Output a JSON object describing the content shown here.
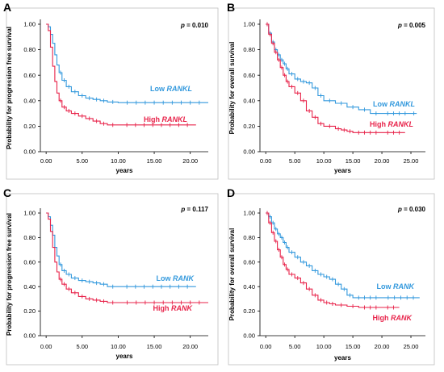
{
  "chart_data": [
    {
      "panel_label": "A",
      "type": "line",
      "xlabel": "years",
      "ylabel": "Probability for progression free survival",
      "x_ticks": [
        "0.00",
        "5.00",
        "10.00",
        "15.00",
        "20.00"
      ],
      "y_ticks": [
        "0.00",
        "0.20",
        "0.40",
        "0.60",
        "0.80",
        "1.00"
      ],
      "xlim": [
        -0.8,
        22.5
      ],
      "ylim": [
        0,
        1.0
      ],
      "p_value": "0.010",
      "series": [
        {
          "name_parts": [
            "Low ",
            "RANKL"
          ],
          "color": "#3399dd",
          "points": [
            [
              0,
              1.0
            ],
            [
              0.3,
              0.98
            ],
            [
              0.6,
              0.92
            ],
            [
              0.9,
              0.85
            ],
            [
              1.2,
              0.76
            ],
            [
              1.5,
              0.68
            ],
            [
              1.8,
              0.62
            ],
            [
              2.2,
              0.56
            ],
            [
              2.8,
              0.51
            ],
            [
              3.5,
              0.47
            ],
            [
              4.5,
              0.44
            ],
            [
              5.5,
              0.42
            ],
            [
              6.5,
              0.41
            ],
            [
              7.5,
              0.4
            ],
            [
              8.5,
              0.39
            ],
            [
              10,
              0.385
            ],
            [
              22.5,
              0.385
            ]
          ]
        },
        {
          "name_parts": [
            "High ",
            "RANKL"
          ],
          "color": "#e8234a",
          "points": [
            [
              0,
              1.0
            ],
            [
              0.3,
              0.95
            ],
            [
              0.6,
              0.82
            ],
            [
              0.9,
              0.67
            ],
            [
              1.2,
              0.55
            ],
            [
              1.5,
              0.46
            ],
            [
              1.8,
              0.4
            ],
            [
              2.2,
              0.35
            ],
            [
              2.8,
              0.32
            ],
            [
              3.5,
              0.3
            ],
            [
              4.5,
              0.28
            ],
            [
              5.5,
              0.26
            ],
            [
              6.5,
              0.24
            ],
            [
              7.5,
              0.22
            ],
            [
              8.5,
              0.21
            ],
            [
              10,
              0.21
            ],
            [
              20.8,
              0.21
            ]
          ]
        }
      ]
    },
    {
      "panel_label": "B",
      "type": "line",
      "xlabel": "years",
      "ylabel": "Probability for overall survival",
      "x_ticks": [
        "0.00",
        "5.00",
        "10.00",
        "15.00",
        "20.00",
        "25.00"
      ],
      "y_ticks": [
        "0.00",
        "0.20",
        "0.40",
        "0.60",
        "0.80",
        "1.00"
      ],
      "xlim": [
        -1.0,
        27.5
      ],
      "ylim": [
        0,
        1.0
      ],
      "p_value": "0.005",
      "series": [
        {
          "name_parts": [
            "Low ",
            "RANKL"
          ],
          "color": "#3399dd",
          "points": [
            [
              0,
              1.0
            ],
            [
              0.5,
              0.93
            ],
            [
              1,
              0.86
            ],
            [
              1.5,
              0.8
            ],
            [
              2,
              0.76
            ],
            [
              2.5,
              0.72
            ],
            [
              3,
              0.69
            ],
            [
              3.5,
              0.65
            ],
            [
              4,
              0.61
            ],
            [
              5,
              0.57
            ],
            [
              6,
              0.55
            ],
            [
              7,
              0.54
            ],
            [
              8,
              0.5
            ],
            [
              9,
              0.44
            ],
            [
              10,
              0.4
            ],
            [
              12,
              0.38
            ],
            [
              14,
              0.35
            ],
            [
              16,
              0.33
            ],
            [
              18,
              0.3
            ],
            [
              20,
              0.3
            ],
            [
              25,
              0.3
            ],
            [
              26,
              0.3
            ]
          ]
        },
        {
          "name_parts": [
            "High ",
            "RANKL"
          ],
          "color": "#e8234a",
          "points": [
            [
              0,
              1.0
            ],
            [
              0.5,
              0.92
            ],
            [
              1,
              0.85
            ],
            [
              1.5,
              0.78
            ],
            [
              2,
              0.72
            ],
            [
              2.5,
              0.66
            ],
            [
              3,
              0.6
            ],
            [
              3.5,
              0.55
            ],
            [
              4,
              0.51
            ],
            [
              5,
              0.46
            ],
            [
              6,
              0.4
            ],
            [
              7,
              0.32
            ],
            [
              8,
              0.27
            ],
            [
              9,
              0.22
            ],
            [
              10,
              0.2
            ],
            [
              12,
              0.18
            ],
            [
              13,
              0.17
            ],
            [
              14,
              0.16
            ],
            [
              15,
              0.15
            ],
            [
              20,
              0.15
            ],
            [
              24,
              0.15
            ]
          ]
        }
      ]
    },
    {
      "panel_label": "C",
      "type": "line",
      "xlabel": "years",
      "ylabel": "Probability for progression free survival",
      "x_ticks": [
        "0.00",
        "5.00",
        "10.00",
        "15.00",
        "20.00"
      ],
      "y_ticks": [
        "0.00",
        "0.20",
        "0.40",
        "0.60",
        "0.80",
        "1.00"
      ],
      "xlim": [
        -0.8,
        22.5
      ],
      "ylim": [
        0,
        1.0
      ],
      "p_value": "0.117",
      "series": [
        {
          "name_parts": [
            "Low ",
            "RANK"
          ],
          "color": "#3399dd",
          "points": [
            [
              0,
              1.0
            ],
            [
              0.3,
              0.97
            ],
            [
              0.6,
              0.9
            ],
            [
              0.9,
              0.82
            ],
            [
              1.2,
              0.72
            ],
            [
              1.5,
              0.65
            ],
            [
              1.8,
              0.58
            ],
            [
              2.2,
              0.53
            ],
            [
              2.8,
              0.5
            ],
            [
              3.5,
              0.47
            ],
            [
              4.5,
              0.45
            ],
            [
              5.5,
              0.44
            ],
            [
              6.5,
              0.43
            ],
            [
              7.5,
              0.42
            ],
            [
              8.5,
              0.4
            ],
            [
              10,
              0.4
            ],
            [
              20.8,
              0.4
            ]
          ]
        },
        {
          "name_parts": [
            "High ",
            "RANK"
          ],
          "color": "#e8234a",
          "points": [
            [
              0,
              1.0
            ],
            [
              0.3,
              0.95
            ],
            [
              0.6,
              0.85
            ],
            [
              0.9,
              0.72
            ],
            [
              1.2,
              0.6
            ],
            [
              1.5,
              0.52
            ],
            [
              1.8,
              0.46
            ],
            [
              2.2,
              0.42
            ],
            [
              2.8,
              0.38
            ],
            [
              3.5,
              0.35
            ],
            [
              4.5,
              0.32
            ],
            [
              5.5,
              0.3
            ],
            [
              6.5,
              0.29
            ],
            [
              7.5,
              0.28
            ],
            [
              8.5,
              0.27
            ],
            [
              10,
              0.27
            ],
            [
              22.5,
              0.27
            ]
          ]
        }
      ]
    },
    {
      "panel_label": "D",
      "type": "line",
      "xlabel": "years",
      "ylabel": "Probability for overall survival",
      "x_ticks": [
        "0.00",
        "5.00",
        "10.00",
        "15.00",
        "20.00",
        "25.00"
      ],
      "y_ticks": [
        "0.00",
        "0.20",
        "0.40",
        "0.60",
        "0.80",
        "1.00"
      ],
      "xlim": [
        -1.0,
        27.5
      ],
      "ylim": [
        0,
        1.0
      ],
      "p_value": "0.030",
      "series": [
        {
          "name_parts": [
            "Low ",
            "RANK"
          ],
          "color": "#3399dd",
          "points": [
            [
              0,
              1.0
            ],
            [
              0.5,
              0.97
            ],
            [
              1,
              0.92
            ],
            [
              1.5,
              0.87
            ],
            [
              2,
              0.83
            ],
            [
              2.5,
              0.8
            ],
            [
              3,
              0.76
            ],
            [
              3.5,
              0.72
            ],
            [
              4,
              0.68
            ],
            [
              5,
              0.64
            ],
            [
              6,
              0.6
            ],
            [
              7,
              0.57
            ],
            [
              8,
              0.53
            ],
            [
              9,
              0.5
            ],
            [
              10,
              0.48
            ],
            [
              11,
              0.46
            ],
            [
              12,
              0.42
            ],
            [
              13,
              0.38
            ],
            [
              14,
              0.33
            ],
            [
              15,
              0.31
            ],
            [
              20,
              0.31
            ],
            [
              26.5,
              0.31
            ]
          ]
        },
        {
          "name_parts": [
            "High ",
            "RANK"
          ],
          "color": "#e8234a",
          "points": [
            [
              0,
              1.0
            ],
            [
              0.5,
              0.92
            ],
            [
              1,
              0.84
            ],
            [
              1.5,
              0.77
            ],
            [
              2,
              0.7
            ],
            [
              2.5,
              0.64
            ],
            [
              3,
              0.58
            ],
            [
              3.5,
              0.54
            ],
            [
              4,
              0.5
            ],
            [
              5,
              0.47
            ],
            [
              6,
              0.43
            ],
            [
              7,
              0.38
            ],
            [
              8,
              0.33
            ],
            [
              9,
              0.29
            ],
            [
              10,
              0.27
            ],
            [
              11,
              0.26
            ],
            [
              12,
              0.25
            ],
            [
              14,
              0.24
            ],
            [
              16,
              0.23
            ],
            [
              20,
              0.23
            ],
            [
              23,
              0.23
            ]
          ]
        }
      ]
    }
  ]
}
